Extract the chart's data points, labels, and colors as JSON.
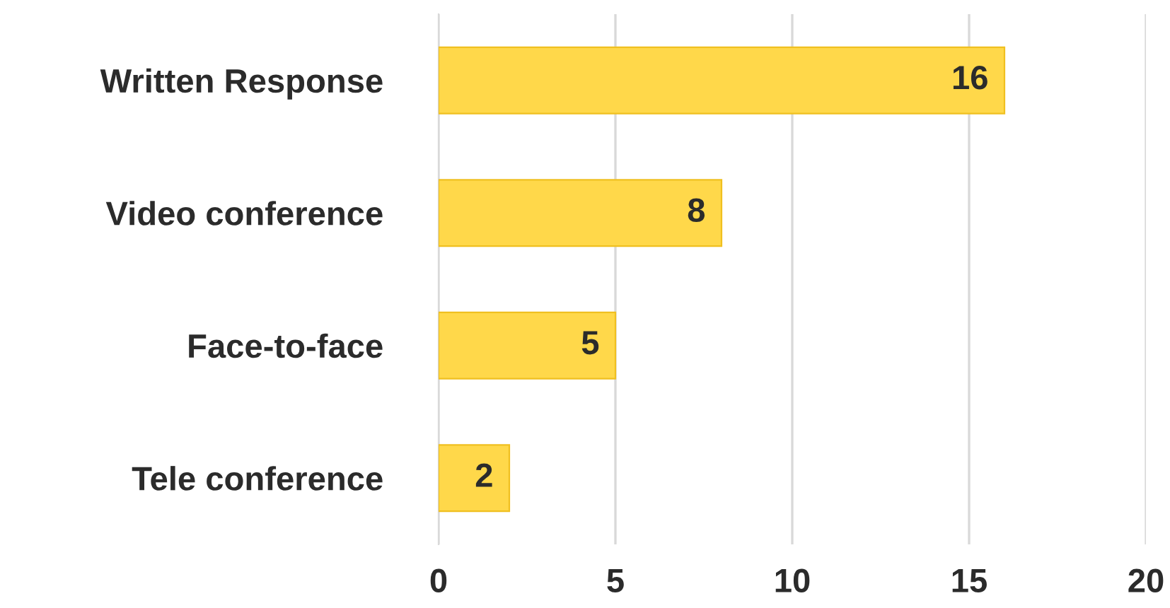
{
  "chart_data": {
    "type": "bar",
    "orientation": "horizontal",
    "categories": [
      "Written Response",
      "Video conference",
      "Face-to-face",
      "Tele conference"
    ],
    "values": [
      16,
      8,
      5,
      2
    ],
    "color": "#ffd84a",
    "xlim": [
      0,
      20
    ],
    "xticks": [
      0,
      5,
      10,
      15,
      20
    ],
    "grid": "x",
    "data_labels": true
  }
}
